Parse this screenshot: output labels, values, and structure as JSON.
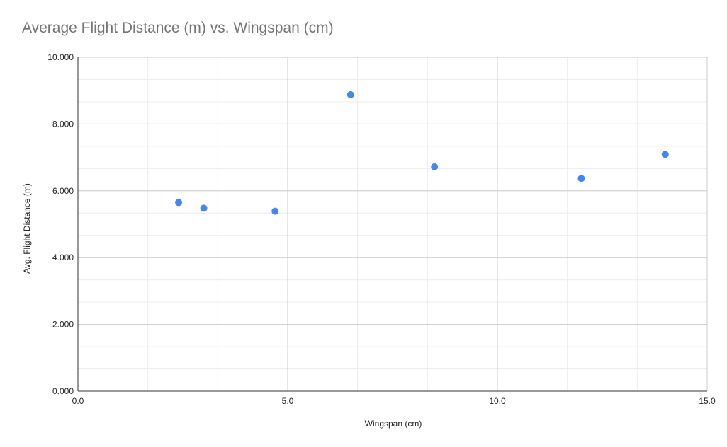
{
  "chart_data": {
    "type": "scatter",
    "title": "Average Flight Distance (m) vs. Wingspan (cm)",
    "xlabel": "Wingspan (cm)",
    "ylabel": "Avg. Flight Distance (m)",
    "xlim": [
      0,
      15
    ],
    "ylim": [
      0,
      10
    ],
    "x_ticks": [
      0,
      5,
      10,
      15
    ],
    "x_tick_labels": [
      "0.0",
      "5.0",
      "10.0",
      "15.0"
    ],
    "y_ticks": [
      0,
      2,
      4,
      6,
      8,
      10
    ],
    "y_tick_labels": [
      "0.000",
      "2.000",
      "4.000",
      "6.000",
      "8.000",
      "10.000"
    ],
    "grid": true,
    "legend": "none",
    "point_color": "#4285f4",
    "series": [
      {
        "x": [
          2.4,
          3.0,
          4.7,
          6.5,
          8.5,
          12.0,
          14.0
        ],
        "y": [
          5.65,
          5.48,
          5.39,
          8.88,
          6.72,
          6.37,
          7.09
        ]
      }
    ]
  }
}
